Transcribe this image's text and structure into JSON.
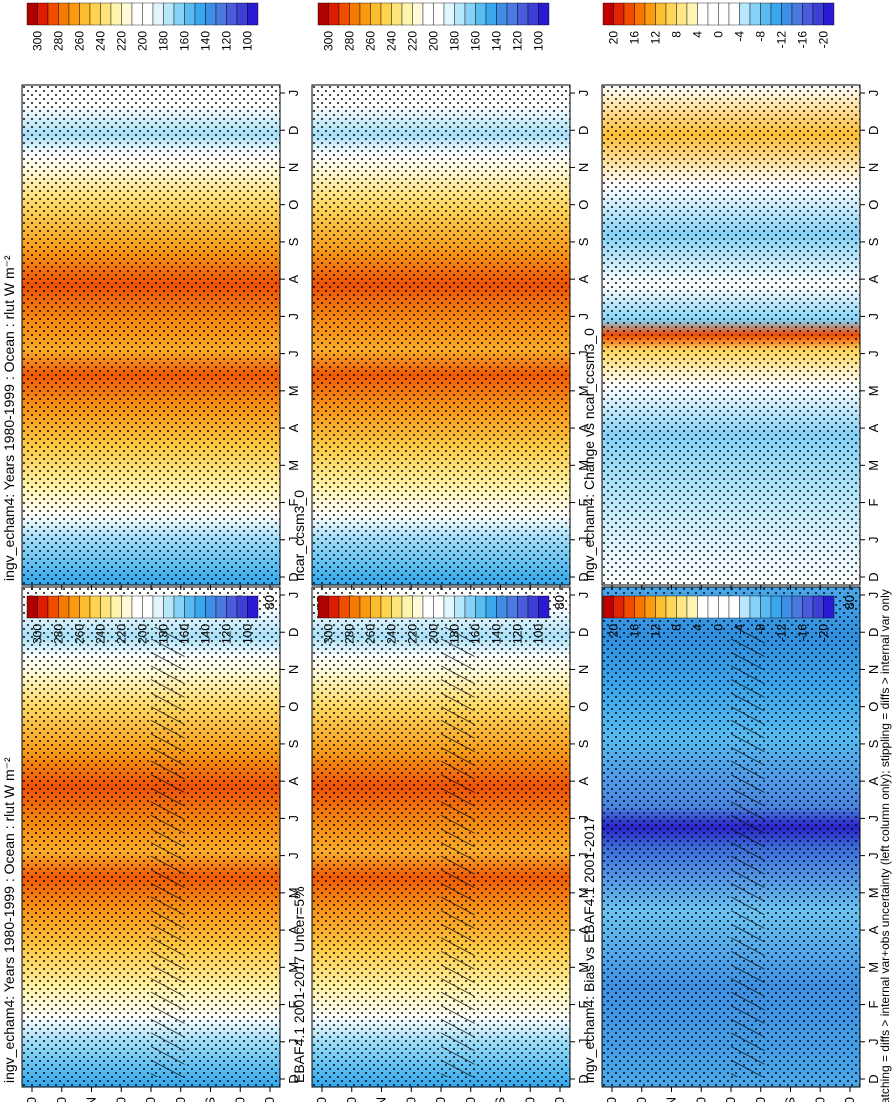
{
  "figure": {
    "footnote": "hatching = diffs > internal var+obs uncertainty (left column only); stippling = diffs > internal var only"
  },
  "colorbars": {
    "abs": {
      "labels": [
        "300",
        "280",
        "260",
        "240",
        "220",
        "200",
        "180",
        "160",
        "140",
        "120",
        "100"
      ],
      "colors": [
        "#b00000",
        "#dd1c00",
        "#ef4e00",
        "#f77a00",
        "#fb9a10",
        "#fdbb2e",
        "#fdd24e",
        "#fde57a",
        "#fef4aa",
        "#fffbd8",
        "#ffffff",
        "#ffffff",
        "#e0f6fd",
        "#b6e7fa",
        "#86d2f6",
        "#58bcf1",
        "#3aa6ec",
        "#3e8ee6",
        "#4c78e0",
        "#4a5cdb",
        "#3d3fd6",
        "#2a1ad0"
      ]
    },
    "diff": {
      "labels": [
        "20",
        "16",
        "12",
        "8",
        "4",
        "0",
        "-4",
        "-8",
        "-12",
        "-16",
        "-20"
      ],
      "colors": [
        "#c00000",
        "#e02400",
        "#f04c00",
        "#f87600",
        "#fb9c14",
        "#fdbf34",
        "#fdd65a",
        "#fee784",
        "#fff4b4",
        "#ffffff",
        "#ffffff",
        "#ffffff",
        "#ffffff",
        "#b6e7fa",
        "#86d2f6",
        "#58bcf1",
        "#3aa6ec",
        "#3e8ee6",
        "#4c78e0",
        "#4a5cdb",
        "#3d3fd6",
        "#2a1ad0"
      ]
    }
  },
  "chart_data": [
    {
      "type": "heatmap",
      "title": "ingv_echam4: Years 1980-1999 : Ocean : rlut W m⁻²",
      "x": [
        "D",
        "J",
        "F",
        "M",
        "A",
        "M",
        "J",
        "J",
        "A",
        "S",
        "O",
        "N",
        "D",
        "J"
      ],
      "y_ticks": [
        "80",
        "60",
        "°N",
        "20",
        "0",
        "20",
        "°S",
        "60",
        "80"
      ],
      "value_range": [
        100,
        300
      ],
      "colorbar": "abs",
      "stippling": true,
      "hatching": true
    },
    {
      "type": "heatmap",
      "title": "ingv_echam4: Years 1980-1999 : Ocean : rlut W m⁻²",
      "x": [
        "D",
        "J",
        "F",
        "M",
        "A",
        "M",
        "J",
        "J",
        "A",
        "S",
        "O",
        "N",
        "D",
        "J"
      ],
      "y_ticks": [
        "80",
        "60",
        "°N",
        "20",
        "0",
        "20",
        "°S",
        "60",
        "80"
      ],
      "value_range": [
        100,
        300
      ],
      "colorbar": "abs",
      "stippling": true,
      "hatching": false
    },
    {
      "type": "heatmap",
      "title": "EBAF4.1 2001-2017 Uncer=5%",
      "x": [
        "D",
        "J",
        "F",
        "M",
        "A",
        "M",
        "J",
        "J",
        "A",
        "S",
        "O",
        "N",
        "D",
        "J"
      ],
      "y_ticks": [
        "80",
        "60",
        "°N",
        "20",
        "0",
        "20",
        "°S",
        "60",
        "80"
      ],
      "value_range": [
        100,
        300
      ],
      "colorbar": "abs",
      "stippling": true,
      "hatching": true
    },
    {
      "type": "heatmap",
      "title": "ncar_ccsm3_0",
      "x": [
        "D",
        "J",
        "F",
        "M",
        "A",
        "M",
        "J",
        "J",
        "A",
        "S",
        "O",
        "N",
        "D",
        "J"
      ],
      "y_ticks": [
        "80",
        "60",
        "°N",
        "20",
        "0",
        "20",
        "°S",
        "60",
        "80"
      ],
      "value_range": [
        100,
        300
      ],
      "colorbar": "abs",
      "stippling": true,
      "hatching": false
    },
    {
      "type": "heatmap",
      "title": "ingv_echam4: Bias vs EBAF4.1 2001-2017",
      "x": [
        "D",
        "J",
        "F",
        "M",
        "A",
        "M",
        "J",
        "J",
        "A",
        "S",
        "O",
        "N",
        "D",
        "J"
      ],
      "y_ticks": [
        "80",
        "60",
        "°N",
        "20",
        "0",
        "20",
        "°S",
        "60",
        "80"
      ],
      "value_range": [
        -20,
        20
      ],
      "colorbar": "diff",
      "stippling": true,
      "hatching": true
    },
    {
      "type": "heatmap",
      "title": "ingv_echam4: Change vs ncar_ccsm3_0",
      "x": [
        "D",
        "J",
        "F",
        "M",
        "A",
        "M",
        "J",
        "J",
        "A",
        "S",
        "O",
        "N",
        "D",
        "J"
      ],
      "y_ticks": [
        "80",
        "60",
        "°N",
        "20",
        "0",
        "20",
        "°S",
        "60",
        "80"
      ],
      "value_range": [
        -20,
        20
      ],
      "colorbar": "diff",
      "stippling": true,
      "hatching": false
    }
  ]
}
